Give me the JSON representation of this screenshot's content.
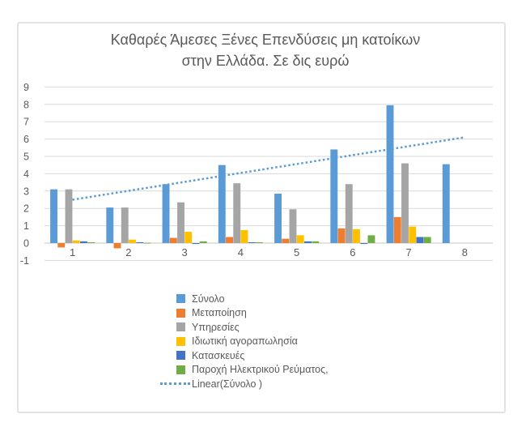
{
  "chart_data": {
    "type": "bar",
    "title": "Καθαρές Άμεσες Ξένες Επενδύσεις μη κατοίκων στην Ελλάδα. Σε δις ευρώ",
    "title_lines": [
      "Καθαρές Άμεσες Ξένες Επενδύσεις μη κατοίκων",
      "στην Ελλάδα. Σε δις ευρώ"
    ],
    "categories": [
      "1",
      "2",
      "3",
      "4",
      "5",
      "6",
      "7",
      "8"
    ],
    "series": [
      {
        "name": "Σύνολο",
        "color": "#5B9BD5",
        "values": [
          3.1,
          2.05,
          3.4,
          4.5,
          2.85,
          5.4,
          7.95,
          4.55
        ]
      },
      {
        "name": "Μεταποίηση",
        "color": "#ED7D31",
        "values": [
          -0.25,
          -0.3,
          0.3,
          0.35,
          0.25,
          0.85,
          1.5,
          null
        ]
      },
      {
        "name": "Υπηρεσίες",
        "color": "#A5A5A5",
        "values": [
          3.1,
          2.05,
          2.35,
          3.45,
          1.95,
          3.4,
          4.6,
          null
        ]
      },
      {
        "name": "Ιδιωτική αγοραπωλησία",
        "color": "#FFC000",
        "values": [
          0.15,
          0.2,
          0.65,
          0.75,
          0.45,
          0.8,
          0.95,
          null
        ]
      },
      {
        "name": "Κατασκευές",
        "color": "#4472C4",
        "values": [
          0.1,
          0.05,
          -0.05,
          0.05,
          0.1,
          -0.05,
          0.35,
          null
        ]
      },
      {
        "name": "Παροχή Ηλεκτρικού Ρεύματος,",
        "color": "#70AD47",
        "values": [
          0.05,
          0.02,
          0.1,
          0.05,
          0.1,
          0.45,
          0.35,
          null
        ]
      }
    ],
    "trendline": {
      "name": "Linear(Σύνολο )",
      "color": "#5B9BD5",
      "style": "dotted",
      "start_value": 2.5,
      "end_value": 6.1
    },
    "y_axis": {
      "min": -1,
      "max": 9,
      "tick_step": 1,
      "ticks": [
        9,
        8,
        7,
        6,
        5,
        4,
        3,
        2,
        1,
        0,
        -1
      ]
    },
    "x_axis": {
      "labels": [
        "1",
        "2",
        "3",
        "4",
        "5",
        "6",
        "7",
        "8"
      ]
    },
    "grid": true,
    "legend_position": "bottom",
    "axis_text_color": "#595959",
    "gridline_color": "#d9d9d9",
    "zero_line_color": "#c6c6c6"
  }
}
